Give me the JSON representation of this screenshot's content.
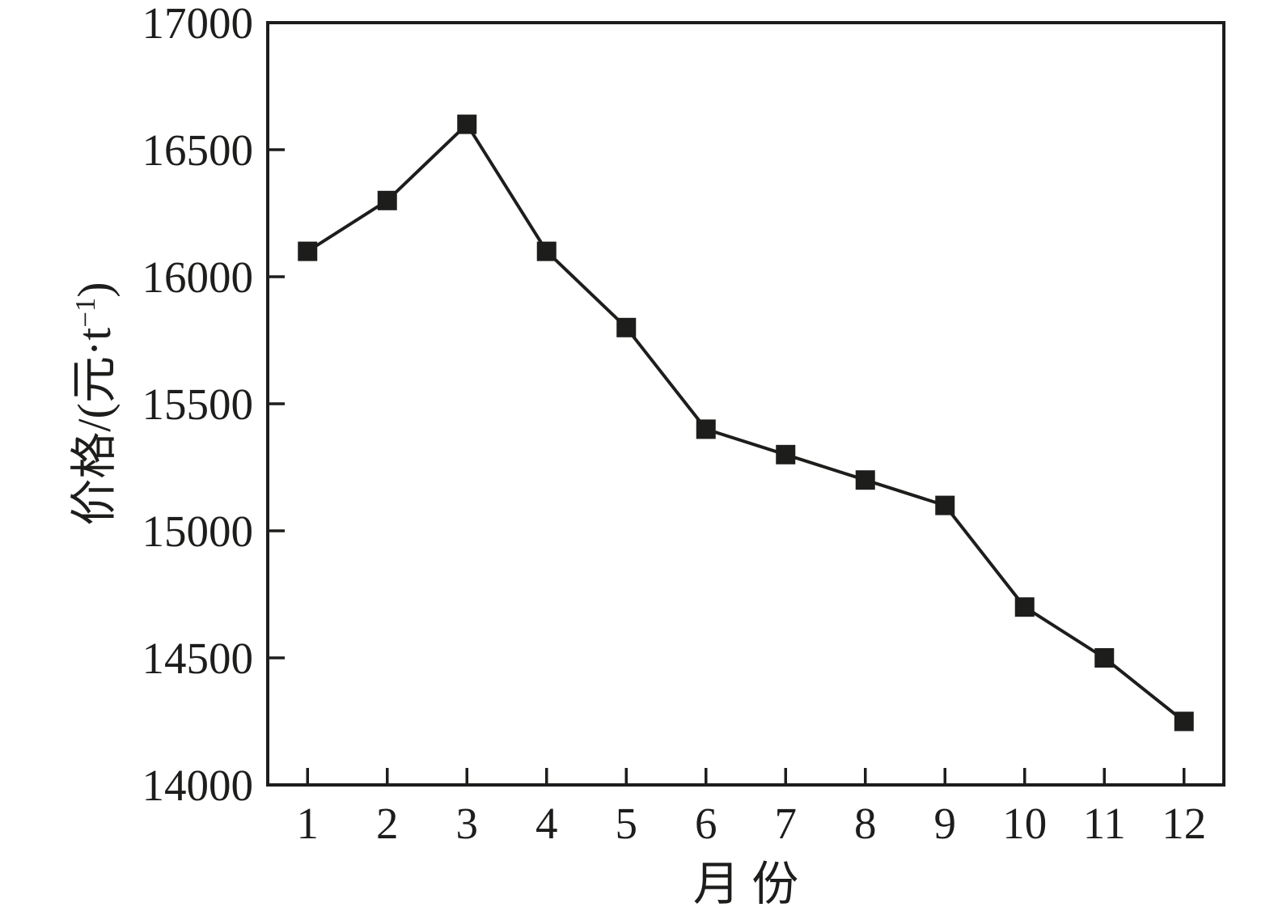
{
  "chart_data": {
    "type": "line",
    "title": "",
    "x": [
      1,
      2,
      3,
      4,
      5,
      6,
      7,
      8,
      9,
      10,
      11,
      12
    ],
    "values": [
      16100,
      16300,
      16600,
      16100,
      15800,
      15400,
      15300,
      15200,
      15100,
      14700,
      14500,
      14250
    ],
    "xlabel": "月 份",
    "ylabel": "价格/(元·t−1)",
    "ylabel_parts": {
      "pre": "价格/(元·t",
      "sup": "−1",
      "post": ")"
    },
    "xlim": [
      0.5,
      12.5
    ],
    "ylim": [
      14000,
      17000
    ],
    "yticks": [
      14000,
      14500,
      15000,
      15500,
      16000,
      16500,
      17000
    ],
    "xticks": [
      1,
      2,
      3,
      4,
      5,
      6,
      7,
      8,
      9,
      10,
      11,
      12
    ],
    "grid": false,
    "legend": "none",
    "frame": "full-box",
    "tick_direction": "in",
    "marker": "filled-square",
    "line_color": "#1d1d1b",
    "marker_color": "#1d1d1b",
    "axis_color": "#1d1d1b",
    "background": "#ffffff"
  }
}
